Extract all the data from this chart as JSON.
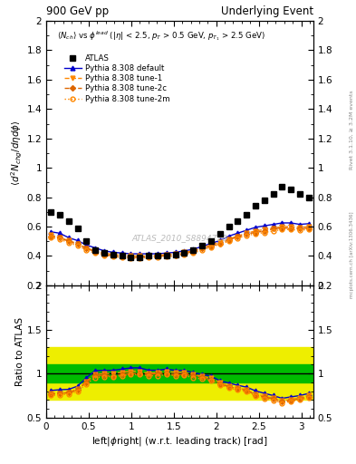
{
  "title_left": "900 GeV pp",
  "title_right": "Underlying Event",
  "watermark": "ATLAS_2010_S8894728",
  "right_label_top": "Rivet 3.1.10, ≥ 3.2M events",
  "right_label_bottom": "mcplots.cern.ch [arXiv:1306.3436]",
  "xlabel": "|left|φ|right| (w.r.t. leading track) [rad]",
  "ylabel_main": "⟨d² Nₜₕᵍ/dηdφ⟩",
  "ylabel_ratio": "Ratio to ATLAS",
  "ylim_main": [
    0.2,
    2.0
  ],
  "ylim_ratio": [
    0.5,
    2.0
  ],
  "xlim": [
    0.0,
    3.14159
  ],
  "band_green_inner": 0.1,
  "band_yellow_outer": 0.3,
  "atlas_x": [
    0.05,
    0.157,
    0.262,
    0.367,
    0.471,
    0.576,
    0.681,
    0.785,
    0.89,
    0.995,
    1.1,
    1.204,
    1.309,
    1.414,
    1.518,
    1.623,
    1.728,
    1.833,
    1.937,
    2.042,
    2.147,
    2.251,
    2.356,
    2.461,
    2.565,
    2.67,
    2.775,
    2.88,
    2.984,
    3.089
  ],
  "atlas_y": [
    0.7,
    0.68,
    0.64,
    0.59,
    0.5,
    0.44,
    0.42,
    0.41,
    0.4,
    0.39,
    0.39,
    0.4,
    0.4,
    0.4,
    0.41,
    0.42,
    0.44,
    0.47,
    0.5,
    0.55,
    0.6,
    0.64,
    0.68,
    0.74,
    0.78,
    0.82,
    0.87,
    0.85,
    0.82,
    0.8
  ],
  "pythia_default_x": [
    0.05,
    0.157,
    0.262,
    0.367,
    0.471,
    0.576,
    0.681,
    0.785,
    0.89,
    0.995,
    1.1,
    1.204,
    1.309,
    1.414,
    1.518,
    1.623,
    1.728,
    1.833,
    1.937,
    2.042,
    2.147,
    2.251,
    2.356,
    2.461,
    2.565,
    2.67,
    2.775,
    2.88,
    2.984,
    3.089
  ],
  "pythia_default_y": [
    0.565,
    0.555,
    0.525,
    0.505,
    0.475,
    0.455,
    0.435,
    0.425,
    0.42,
    0.415,
    0.415,
    0.415,
    0.415,
    0.42,
    0.425,
    0.435,
    0.445,
    0.465,
    0.485,
    0.505,
    0.535,
    0.555,
    0.575,
    0.595,
    0.605,
    0.615,
    0.625,
    0.625,
    0.615,
    0.62
  ],
  "pythia_tune1_x": [
    0.05,
    0.157,
    0.262,
    0.367,
    0.471,
    0.576,
    0.681,
    0.785,
    0.89,
    0.995,
    1.1,
    1.204,
    1.309,
    1.414,
    1.518,
    1.623,
    1.728,
    1.833,
    1.937,
    2.042,
    2.147,
    2.251,
    2.356,
    2.461,
    2.565,
    2.67,
    2.775,
    2.88,
    2.984,
    3.089
  ],
  "pythia_tune1_y": [
    0.545,
    0.525,
    0.505,
    0.485,
    0.455,
    0.435,
    0.42,
    0.41,
    0.405,
    0.4,
    0.4,
    0.4,
    0.405,
    0.41,
    0.415,
    0.425,
    0.435,
    0.455,
    0.475,
    0.495,
    0.515,
    0.535,
    0.555,
    0.57,
    0.58,
    0.59,
    0.6,
    0.6,
    0.595,
    0.6
  ],
  "pythia_tune2c_x": [
    0.05,
    0.157,
    0.262,
    0.367,
    0.471,
    0.576,
    0.681,
    0.785,
    0.89,
    0.995,
    1.1,
    1.204,
    1.309,
    1.414,
    1.518,
    1.623,
    1.728,
    1.833,
    1.937,
    2.042,
    2.147,
    2.251,
    2.356,
    2.461,
    2.565,
    2.67,
    2.775,
    2.88,
    2.984,
    3.089
  ],
  "pythia_tune2c_y": [
    0.535,
    0.525,
    0.5,
    0.48,
    0.45,
    0.43,
    0.41,
    0.4,
    0.395,
    0.39,
    0.39,
    0.395,
    0.4,
    0.4,
    0.405,
    0.415,
    0.43,
    0.45,
    0.465,
    0.485,
    0.51,
    0.53,
    0.55,
    0.56,
    0.57,
    0.585,
    0.59,
    0.59,
    0.585,
    0.59
  ],
  "pythia_tune2m_x": [
    0.05,
    0.157,
    0.262,
    0.367,
    0.471,
    0.576,
    0.681,
    0.785,
    0.89,
    0.995,
    1.1,
    1.204,
    1.309,
    1.414,
    1.518,
    1.623,
    1.728,
    1.833,
    1.937,
    2.042,
    2.147,
    2.251,
    2.356,
    2.461,
    2.565,
    2.67,
    2.775,
    2.88,
    2.984,
    3.089
  ],
  "pythia_tune2m_y": [
    0.525,
    0.515,
    0.49,
    0.47,
    0.44,
    0.42,
    0.405,
    0.395,
    0.39,
    0.385,
    0.385,
    0.39,
    0.39,
    0.395,
    0.4,
    0.41,
    0.42,
    0.44,
    0.46,
    0.48,
    0.5,
    0.52,
    0.54,
    0.55,
    0.56,
    0.57,
    0.58,
    0.58,
    0.575,
    0.58
  ],
  "color_atlas": "#000000",
  "color_default": "#0000cc",
  "color_tune1": "#ff8800",
  "color_tune2c": "#dd6600",
  "color_tune2m": "#ff8800",
  "color_green": "#00bb00",
  "color_yellow": "#eeee00",
  "main_yticks": [
    0.2,
    0.4,
    0.6,
    0.8,
    1.0,
    1.2,
    1.4,
    1.6,
    1.8,
    2.0
  ],
  "ratio_yticks": [
    0.5,
    1.0,
    1.5,
    2.0
  ],
  "xticks": [
    0,
    0.5,
    1.0,
    1.5,
    2.0,
    2.5,
    3.0
  ],
  "xtick_labels": [
    "0",
    "0.5",
    "1",
    "1.5",
    "2",
    "2.5",
    "3"
  ]
}
